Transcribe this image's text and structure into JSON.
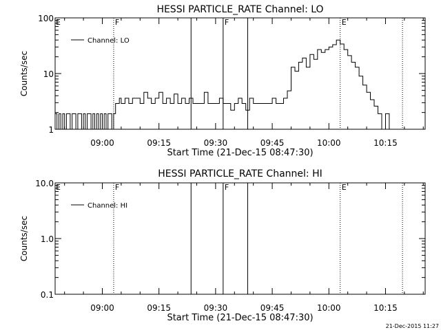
{
  "footer": {
    "timestamp": "21-Dec-2015 11:27"
  },
  "chart_data": [
    {
      "type": "line",
      "title": "HESSI PARTICLE_RATE Channel: LO",
      "xlabel": "Start Time (21-Dec-15 08:47:30)",
      "ylabel": "Counts/sec",
      "yscale": "log",
      "xlim": [
        "08:47:30",
        "10:25:30"
      ],
      "ylim": [
        1,
        100
      ],
      "x_ticks": [
        "09:00",
        "09:15",
        "09:30",
        "09:45",
        "10:00",
        "10:15"
      ],
      "y_ticks": [
        "1",
        "10",
        "100"
      ],
      "legend": {
        "position": "top-left",
        "entries": [
          "Channel: LO"
        ]
      },
      "grid": false,
      "vlines": [
        {
          "time": "09:03:00",
          "style": "dotted",
          "label": "F"
        },
        {
          "time": "09:23:30",
          "style": "solid",
          "label": ""
        },
        {
          "time": "09:32:00",
          "style": "solid",
          "label": "F"
        },
        {
          "time": "09:38:30",
          "style": "solid",
          "label": ""
        },
        {
          "time": "10:03:00",
          "style": "dotted",
          "label": "E"
        },
        {
          "time": "10:19:30",
          "style": "dotted",
          "label": ""
        }
      ],
      "corner_labels": [
        "E"
      ],
      "series": [
        {
          "name": "Channel: LO",
          "x": [
            "08:47:30",
            "08:48:00",
            "08:48:30",
            "08:49:00",
            "08:49:30",
            "08:50:00",
            "08:50:30",
            "08:51:00",
            "08:51:30",
            "08:52:00",
            "08:52:30",
            "08:53:00",
            "08:53:30",
            "08:54:00",
            "08:54:30",
            "08:55:00",
            "08:55:30",
            "08:56:00",
            "08:56:30",
            "08:57:00",
            "08:57:30",
            "08:58:00",
            "08:58:30",
            "08:59:00",
            "08:59:30",
            "09:00:00",
            "09:00:30",
            "09:01:00",
            "09:01:30",
            "09:02:00",
            "09:02:30",
            "09:03:00",
            "09:03:30",
            "09:04:00",
            "09:04:30",
            "09:05:00",
            "09:06:00",
            "09:07:00",
            "09:08:00",
            "09:09:00",
            "09:10:00",
            "09:11:00",
            "09:12:00",
            "09:13:00",
            "09:14:00",
            "09:15:00",
            "09:16:00",
            "09:17:00",
            "09:18:00",
            "09:19:00",
            "09:20:00",
            "09:21:00",
            "09:22:00",
            "09:23:00",
            "09:24:00",
            "09:25:00",
            "09:26:00",
            "09:27:00",
            "09:28:00",
            "09:29:00",
            "09:30:00",
            "09:31:00",
            "09:32:00",
            "09:33:00",
            "09:34:00",
            "09:35:00",
            "09:36:00",
            "09:37:00",
            "09:38:00",
            "09:39:00",
            "09:40:00",
            "09:41:00",
            "09:42:00",
            "09:43:00",
            "09:44:00",
            "09:45:00",
            "09:46:00",
            "09:47:00",
            "09:48:00",
            "09:49:00",
            "09:50:00",
            "09:51:00",
            "09:52:00",
            "09:53:00",
            "09:54:00",
            "09:55:00",
            "09:56:00",
            "09:57:00",
            "09:58:00",
            "09:59:00",
            "10:00:00",
            "10:01:00",
            "10:02:00",
            "10:03:00",
            "10:04:00",
            "10:05:00",
            "10:06:00",
            "10:07:00",
            "10:08:00",
            "10:09:00",
            "10:10:00",
            "10:11:00",
            "10:12:00",
            "10:13:00",
            "10:14:00",
            "10:15:00",
            "10:16:00",
            "10:17:00",
            "10:18:00",
            "10:19:00"
          ],
          "values": [
            1.9,
            1.0,
            1.9,
            1.0,
            1.9,
            1.0,
            1.9,
            1.9,
            1.0,
            1.9,
            1.9,
            1.0,
            1.9,
            1.9,
            1.0,
            1.9,
            1.0,
            1.9,
            1.9,
            1.0,
            1.9,
            1.0,
            1.9,
            1.0,
            1.9,
            1.0,
            1.9,
            1.0,
            1.9,
            1.9,
            1.0,
            1.9,
            2.9,
            2.9,
            3.6,
            2.9,
            3.6,
            2.9,
            3.6,
            3.6,
            2.9,
            4.6,
            3.6,
            2.9,
            3.6,
            4.6,
            2.9,
            3.6,
            2.9,
            4.3,
            2.9,
            3.6,
            2.9,
            3.6,
            2.9,
            2.9,
            2.9,
            4.6,
            2.9,
            2.9,
            2.9,
            3.6,
            2.9,
            2.9,
            2.2,
            2.9,
            3.6,
            2.9,
            2.2,
            3.6,
            2.9,
            2.9,
            2.9,
            2.9,
            2.9,
            3.6,
            2.9,
            2.9,
            3.6,
            4.9,
            13.0,
            11.0,
            16.0,
            19.0,
            13.0,
            22.0,
            18.0,
            27.0,
            24.0,
            27.0,
            30.0,
            33.0,
            40.0,
            34.0,
            27.0,
            21.0,
            16.0,
            13.0,
            9.0,
            6.2,
            4.6,
            3.4,
            2.6,
            1.9,
            1.0,
            1.9,
            1.0,
            1.0,
            1.0,
            1.0
          ]
        }
      ]
    },
    {
      "type": "line",
      "title": "HESSI PARTICLE_RATE Channel: HI",
      "xlabel": "Start Time (21-Dec-15 08:47:30)",
      "ylabel": "Counts/sec",
      "yscale": "log",
      "xlim": [
        "08:47:30",
        "10:25:30"
      ],
      "ylim": [
        0.1,
        10.0
      ],
      "x_ticks": [
        "09:00",
        "09:15",
        "09:30",
        "09:45",
        "10:00",
        "10:15"
      ],
      "y_ticks": [
        "0.1",
        "1.0",
        "10.0"
      ],
      "legend": {
        "position": "top-left",
        "entries": [
          "Channel: HI"
        ]
      },
      "grid": false,
      "vlines": [
        {
          "time": "09:03:00",
          "style": "dotted",
          "label": "F"
        },
        {
          "time": "09:23:30",
          "style": "solid",
          "label": ""
        },
        {
          "time": "09:32:00",
          "style": "solid",
          "label": "F"
        },
        {
          "time": "09:38:30",
          "style": "solid",
          "label": ""
        },
        {
          "time": "10:03:00",
          "style": "dotted",
          "label": "E"
        },
        {
          "time": "10:19:30",
          "style": "dotted",
          "label": ""
        }
      ],
      "corner_labels": [
        "E"
      ],
      "series": [
        {
          "name": "Channel: HI",
          "x": [],
          "values": []
        }
      ]
    }
  ]
}
